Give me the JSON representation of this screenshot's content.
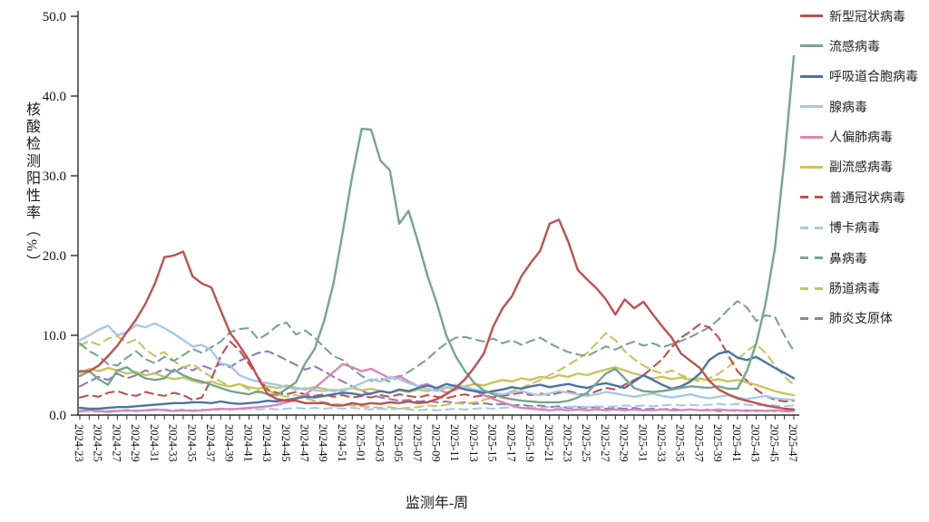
{
  "axes": {
    "y_title": "核酸检测阳性率（%）",
    "x_title": "监测年-周",
    "y_ticks": [
      "0.0",
      "10.0",
      "20.0",
      "30.0",
      "40.0",
      "50.0"
    ]
  },
  "chart_data": {
    "type": "line",
    "title": "",
    "xlabel": "监测年-周",
    "ylabel": "核酸检测阳性率（%）",
    "ylim": [
      0,
      50
    ],
    "grid": false,
    "legend_position": "right",
    "x_tick_label_every": 2,
    "categories": [
      "2024-23",
      "2024-24",
      "2024-25",
      "2024-26",
      "2024-27",
      "2024-28",
      "2024-29",
      "2024-30",
      "2024-31",
      "2024-32",
      "2024-33",
      "2024-34",
      "2024-35",
      "2024-36",
      "2024-37",
      "2024-38",
      "2024-39",
      "2024-40",
      "2024-41",
      "2024-42",
      "2024-43",
      "2024-44",
      "2024-45",
      "2024-46",
      "2024-47",
      "2024-48",
      "2024-49",
      "2024-50",
      "2024-51",
      "2024-52",
      "2025-01",
      "2025-02",
      "2025-03",
      "2025-04",
      "2025-05",
      "2025-06",
      "2025-07",
      "2025-08",
      "2025-09",
      "2025-10",
      "2025-11",
      "2025-12",
      "2025-13",
      "2025-14",
      "2025-15",
      "2025-16",
      "2025-17",
      "2025-18",
      "2025-19",
      "2025-20",
      "2025-21",
      "2025-22",
      "2025-23",
      "2025-24",
      "2025-25",
      "2025-26",
      "2025-27",
      "2025-28",
      "2025-29",
      "2025-30",
      "2025-31",
      "2025-32",
      "2025-33",
      "2025-34",
      "2025-35",
      "2025-36",
      "2025-37",
      "2025-38",
      "2025-39",
      "2025-40",
      "2025-41",
      "2025-42",
      "2025-43",
      "2025-44",
      "2025-45",
      "2025-46",
      "2025-47"
    ],
    "series": [
      {
        "key": "covid",
        "name": "新型冠状病毒",
        "color": "#C0504D",
        "dash": false,
        "values": [
          5.5,
          5.5,
          6.2,
          7.4,
          8.7,
          10.4,
          12,
          14,
          16.5,
          19.8,
          20,
          20.5,
          17.4,
          16.5,
          16,
          13.1,
          10.3,
          8.7,
          6.9,
          4.6,
          2.6,
          2,
          1.8,
          1.8,
          1.5,
          1.5,
          1.5,
          1.2,
          1.2,
          1.5,
          1.3,
          1.5,
          1.4,
          1.6,
          1.5,
          1.7,
          1.5,
          1.6,
          2,
          2.6,
          3.4,
          4.5,
          6,
          7.7,
          11.1,
          13.4,
          14.9,
          17.4,
          19.1,
          20.6,
          24,
          24.5,
          21.7,
          18.2,
          17,
          15.9,
          14.5,
          12.6,
          14.5,
          13.4,
          14.2,
          12.6,
          11.1,
          9.7,
          7.7,
          6.8,
          5.9,
          4.3,
          3.2,
          2.6,
          2.1,
          1.8,
          1.5,
          1.2,
          1,
          0.8,
          0.7
        ]
      },
      {
        "key": "influenza",
        "name": "流感病毒",
        "color": "#77A58C",
        "dash": false,
        "values": [
          4.9,
          5.5,
          4.5,
          3.8,
          5.6,
          6,
          5.2,
          4.6,
          4.4,
          4.6,
          5.7,
          5,
          4.5,
          4.2,
          3.8,
          3.4,
          3,
          2.8,
          2.6,
          3,
          2.6,
          2.5,
          3.3,
          4.1,
          6.5,
          8.3,
          11.8,
          16.5,
          23,
          30,
          35.9,
          35.8,
          31.9,
          30.7,
          24,
          25.6,
          21.7,
          17.5,
          14,
          10,
          7.4,
          5.5,
          4,
          3.1,
          2.6,
          2.2,
          2,
          1.8,
          1.7,
          1.6,
          1.6,
          1.6,
          1.8,
          2.2,
          2.8,
          4,
          5.2,
          5.8,
          4.6,
          3.4,
          3,
          2.9,
          3,
          3.2,
          3.4,
          3.6,
          3.5,
          3.4,
          3.6,
          3.3,
          3.3,
          5.5,
          9,
          14,
          21,
          32,
          45
        ]
      },
      {
        "key": "rsv",
        "name": "呼吸道合胞病毒",
        "color": "#4A74A6",
        "dash": false,
        "values": [
          0.9,
          0.8,
          0.8,
          0.9,
          1,
          1,
          1.1,
          1.2,
          1.3,
          1.4,
          1.5,
          1.5,
          1.6,
          1.6,
          1.5,
          1.7,
          1.5,
          1.4,
          1.5,
          1.6,
          1.8,
          1.7,
          1.9,
          2.1,
          2.3,
          2.2,
          2.4,
          2.6,
          2.8,
          2.7,
          2.5,
          2.7,
          3,
          2.8,
          3.2,
          3,
          3.4,
          3.7,
          3.4,
          3.9,
          3.6,
          3.2,
          3,
          2.8,
          3,
          3.2,
          3.5,
          3.3,
          3.6,
          3.8,
          3.5,
          3.7,
          3.9,
          3.6,
          3.4,
          3.8,
          4,
          3.7,
          3.4,
          4.2,
          5,
          4.4,
          3.8,
          3.3,
          3.6,
          4.2,
          5.2,
          6.9,
          7.7,
          8,
          7.2,
          6.9,
          7.3,
          6.6,
          5.9,
          5.3,
          4.6
        ]
      },
      {
        "key": "adenovirus",
        "name": "腺病毒",
        "color": "#A6C9E8",
        "dash": false,
        "values": [
          9.4,
          10,
          10.7,
          11.2,
          10,
          10.4,
          11.3,
          11,
          11.5,
          10.9,
          10.2,
          9.4,
          8.6,
          8.8,
          8.1,
          6.5,
          6.2,
          5,
          4.5,
          4.2,
          4,
          3.8,
          3.5,
          3.2,
          3.4,
          3.1,
          3,
          3.2,
          3,
          3.5,
          4,
          4.5,
          4.2,
          4.8,
          4.5,
          4,
          3.6,
          3.3,
          3,
          3.4,
          3.8,
          3.5,
          3.2,
          3,
          2.8,
          2.6,
          2.8,
          3,
          2.7,
          2.5,
          2.7,
          3,
          2.8,
          2.6,
          2.4,
          2.6,
          2.9,
          2.7,
          2.5,
          2.3,
          2.5,
          2.7,
          2.4,
          2.2,
          2.4,
          2.6,
          2.3,
          2.1,
          2.3,
          2.5,
          2.2,
          2,
          2.2,
          2.4,
          2.1,
          2,
          1.9
        ]
      },
      {
        "key": "hmpv",
        "name": "人偏肺病毒",
        "color": "#D886B9",
        "dash": false,
        "values": [
          0.5,
          0.6,
          0.5,
          0.4,
          0.5,
          0.6,
          0.5,
          0.6,
          0.7,
          0.6,
          0.5,
          0.6,
          0.5,
          0.6,
          0.7,
          0.8,
          0.7,
          0.8,
          0.9,
          1,
          1.1,
          1.3,
          1.6,
          2,
          2.6,
          3.4,
          4.4,
          5.4,
          6.4,
          6,
          5.5,
          5.8,
          5.2,
          4.6,
          4.9,
          4.2,
          3.6,
          3.9,
          3.3,
          2.8,
          3.2,
          3.6,
          3.1,
          2.5,
          2,
          1.6,
          1.2,
          0.9,
          0.8,
          0.7,
          0.6,
          0.7,
          0.6,
          0.7,
          0.6,
          0.7,
          0.6,
          0.7,
          0.6,
          0.7,
          0.6,
          0.6,
          0.7,
          0.6,
          0.6,
          0.7,
          0.6,
          0.6,
          0.7,
          0.6,
          0.6,
          0.5,
          0.6,
          0.5,
          0.6,
          0.5,
          0.5
        ]
      },
      {
        "key": "parainfluenza",
        "name": "副流感病毒",
        "color": "#C8C45F",
        "dash": false,
        "values": [
          5.3,
          5.8,
          5.5,
          5.9,
          5.6,
          5.2,
          5.4,
          5,
          5.2,
          4.8,
          4.5,
          4.7,
          4.3,
          4,
          4.2,
          3.8,
          3.6,
          3.9,
          3.5,
          3.3,
          3.6,
          3.4,
          3.7,
          3.4,
          3.2,
          3.5,
          3.3,
          3,
          3.2,
          3.4,
          3.1,
          3.3,
          3,
          2.8,
          3.1,
          2.9,
          3.2,
          3,
          3.3,
          3.5,
          3.2,
          3.6,
          3.9,
          3.7,
          4.1,
          4.4,
          4.2,
          4.6,
          4.4,
          4.8,
          4.6,
          5,
          4.8,
          5.2,
          5,
          5.4,
          5.7,
          6,
          5.6,
          5.2,
          4.9,
          4.6,
          4.8,
          4.5,
          4.7,
          4.4,
          4.6,
          4.3,
          4.5,
          4.2,
          4.4,
          4.1,
          3.8,
          3.4,
          3,
          2.7,
          2.5
        ]
      },
      {
        "key": "common-coronavirus",
        "name": "普通冠状病毒",
        "color": "#C0504D",
        "dash": true,
        "values": [
          2.2,
          2.5,
          2.3,
          2.8,
          3,
          2.6,
          2.4,
          2.9,
          2.6,
          2.4,
          2.8,
          2.5,
          1.9,
          2.2,
          4.5,
          7.4,
          9.2,
          8.1,
          6.4,
          4.7,
          3.2,
          2.8,
          2.6,
          2.9,
          2.6,
          2.4,
          2.6,
          2.3,
          2.5,
          2.2,
          2.4,
          2.2,
          2.5,
          2.3,
          2.6,
          2.4,
          2.2,
          2.5,
          2.3,
          2.1,
          2.4,
          2.6,
          2.3,
          2.5,
          2.2,
          2.4,
          2.6,
          2.8,
          2.5,
          2.7,
          2.5,
          2.8,
          3,
          2.7,
          2.5,
          3,
          3.4,
          3.2,
          3.8,
          4.4,
          5,
          6,
          7,
          8.5,
          9.7,
          10.5,
          11.4,
          11,
          9.7,
          7.5,
          5.5,
          4.3,
          3.2,
          2.4,
          1.9,
          1.7,
          1.8
        ]
      },
      {
        "key": "bocavirus",
        "name": "博卡病毒",
        "color": "#A6C9E8",
        "dash": true,
        "values": [
          0.4,
          0.5,
          0.4,
          0.5,
          0.6,
          0.5,
          0.6,
          0.5,
          0.6,
          0.7,
          0.6,
          0.7,
          0.6,
          0.7,
          0.6,
          0.7,
          0.8,
          0.7,
          0.8,
          0.7,
          0.8,
          0.7,
          0.8,
          0.9,
          0.8,
          0.9,
          0.8,
          0.9,
          0.8,
          0.9,
          0.8,
          0.7,
          0.8,
          0.7,
          0.8,
          0.7,
          0.6,
          0.7,
          0.6,
          0.7,
          0.8,
          0.7,
          0.8,
          0.9,
          0.8,
          0.9,
          1,
          0.9,
          1,
          0.9,
          1,
          0.9,
          1,
          1.1,
          1,
          1.1,
          1,
          1.1,
          1.2,
          1.1,
          1.2,
          1.1,
          1.2,
          1.3,
          1.2,
          1.3,
          1.2,
          1.3,
          1.4,
          1.3,
          1.4,
          1.3,
          1.2,
          1.3,
          1.2,
          1.1,
          1.2
        ]
      },
      {
        "key": "rhinovirus",
        "name": "鼻病毒",
        "color": "#77A58C",
        "dash": true,
        "values": [
          9,
          8,
          7.4,
          6.4,
          6.2,
          7.2,
          8,
          7,
          6.5,
          7.3,
          6.8,
          7.5,
          8.3,
          7.8,
          8.5,
          9.2,
          10.4,
          10.8,
          10.9,
          9.5,
          10.2,
          11.2,
          11.6,
          10.1,
          10.6,
          9.7,
          8.5,
          7.4,
          6.9,
          5.8,
          4.9,
          4.3,
          4.6,
          4.2,
          4.8,
          5.4,
          6.2,
          7,
          8.1,
          9,
          9.7,
          9.8,
          9.5,
          9.2,
          9.6,
          9,
          9.4,
          8.8,
          9.3,
          9.7,
          9,
          8.4,
          7.9,
          7.6,
          7.4,
          8,
          8.6,
          8.2,
          8.8,
          9.2,
          8.7,
          9,
          8.5,
          8.9,
          9.3,
          9.8,
          10.4,
          11,
          12,
          13.2,
          14.3,
          13.5,
          11.8,
          12.5,
          12.3,
          10,
          8
        ]
      },
      {
        "key": "enterovirus",
        "name": "肠道病毒",
        "color": "#C8C45F",
        "dash": true,
        "values": [
          8.7,
          9.3,
          8.8,
          9.6,
          9.9,
          9,
          9.5,
          8.2,
          7.4,
          7.9,
          6.8,
          6,
          6.4,
          5.5,
          4.8,
          4.2,
          3.6,
          3.9,
          3.2,
          2.8,
          3.1,
          2.6,
          2.3,
          2.5,
          2.1,
          1.8,
          1.6,
          1.4,
          1.3,
          1.2,
          1.1,
          1,
          0.9,
          1,
          0.8,
          0.9,
          1,
          1.2,
          1.1,
          1.3,
          1.5,
          1.4,
          1.6,
          1.9,
          2.2,
          2.6,
          3,
          3.4,
          3.9,
          4.4,
          5,
          5.6,
          6.3,
          7,
          7.8,
          9,
          10.3,
          9.4,
          8,
          7,
          6.2,
          5.6,
          5.2,
          5.6,
          5,
          4.6,
          4.2,
          4.6,
          5.2,
          6,
          7,
          8,
          8.9,
          7.8,
          6.2,
          4.8,
          3.8
        ]
      },
      {
        "key": "mycoplasma",
        "name": "肺炎支原体",
        "color": "#8E7CB8",
        "dash": true,
        "values": [
          3.6,
          4.2,
          4.8,
          4.4,
          5.2,
          4.6,
          5,
          5.6,
          5.2,
          5.8,
          5.4,
          6,
          5.6,
          6.2,
          5.8,
          6.4,
          6,
          6.8,
          7.3,
          7.8,
          8,
          7.5,
          6.9,
          6.3,
          5.7,
          6.1,
          5.5,
          4.8,
          4.2,
          3.6,
          3,
          2.6,
          2.2,
          2,
          1.8,
          1.9,
          1.7,
          1.8,
          1.6,
          1.7,
          1.5,
          1.6,
          1.4,
          1.5,
          1.3,
          1.4,
          1.2,
          1.3,
          1.1,
          1.2,
          1,
          1.1,
          0.9,
          1,
          0.9,
          1,
          0.8,
          0.9,
          0.8,
          0.9,
          0.7,
          0.8,
          0.7,
          0.8,
          0.6,
          0.7,
          0.6,
          0.7,
          0.5,
          0.6,
          0.5,
          0.6,
          0.5,
          0.6,
          0.5,
          0.5,
          0.4
        ]
      }
    ]
  }
}
